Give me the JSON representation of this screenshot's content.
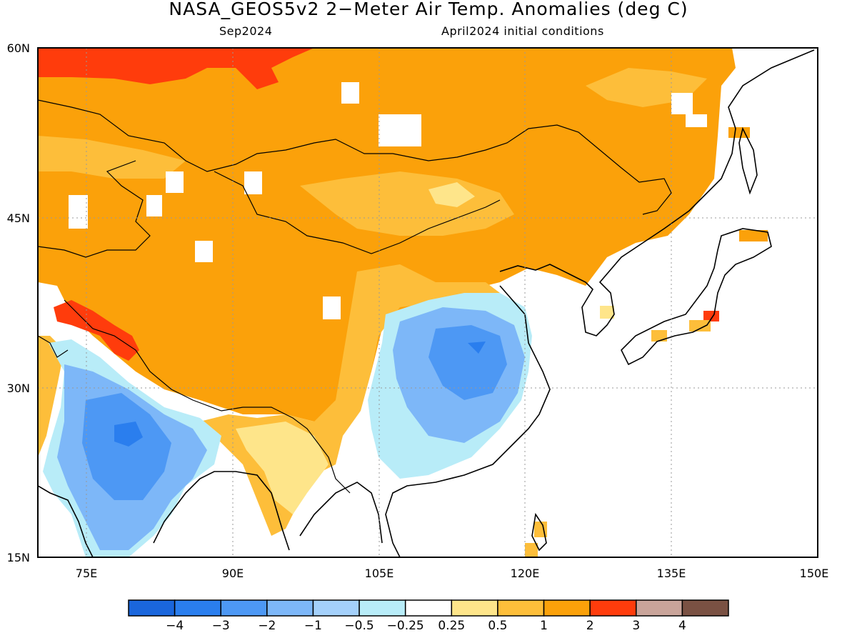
{
  "title": "NASA_GEOS5v2 2−Meter Air Temp. Anomalies (deg C)",
  "subtitle_left": "Sep2024",
  "subtitle_right": "April2024 initial conditions",
  "map": {
    "lon_range": [
      70,
      150
    ],
    "lat_range": [
      15,
      60
    ],
    "lon_ticks": [
      "75E",
      "90E",
      "105E",
      "120E",
      "135E",
      "150E"
    ],
    "lat_ticks": [
      "60N",
      "45N",
      "30N",
      "15N"
    ],
    "grid": "dotted"
  },
  "colorbar": {
    "colors": [
      "#1a66dc",
      "#2a7eee",
      "#4d98f4",
      "#7db7f8",
      "#a4d0fa",
      "#b8ecf8",
      "#ffffff",
      "#fee58a",
      "#fdbe3a",
      "#fba10a",
      "#ff3c0c",
      "#c9a49a",
      "#7a5143"
    ],
    "labels": [
      "−4",
      "−3",
      "−2",
      "−1",
      "−0.5",
      "−0.25",
      "0.25",
      "0.5",
      "1",
      "2",
      "3",
      "4"
    ]
  }
}
